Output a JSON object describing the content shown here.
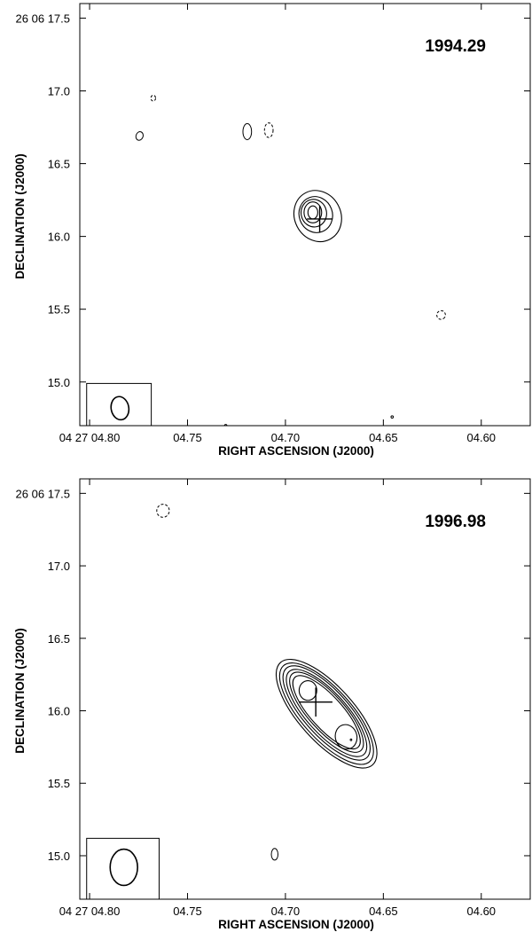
{
  "chart_data": [
    {
      "type": "contour",
      "epoch_label": "1994.29",
      "xlabel": "RIGHT ASCENSION (J2000)",
      "ylabel": "DECLINATION (J2000)",
      "xlim": [
        0.805,
        0.575
      ],
      "ylim": [
        14.7,
        17.6
      ],
      "x_ticks": [
        {
          "value": 0.8,
          "label": "04 27 04.80"
        },
        {
          "value": 0.75,
          "label": "04.75"
        },
        {
          "value": 0.7,
          "label": "04.70"
        },
        {
          "value": 0.65,
          "label": "04.65"
        },
        {
          "value": 0.6,
          "label": "04.60"
        }
      ],
      "y_ticks": [
        {
          "value": 17.5,
          "label": "26 06 17.5"
        },
        {
          "value": 17.0,
          "label": "17.0"
        },
        {
          "value": 16.5,
          "label": "16.5"
        },
        {
          "value": 16.0,
          "label": "16.0"
        },
        {
          "value": 15.5,
          "label": "15.5"
        },
        {
          "value": 15.0,
          "label": "15.0"
        }
      ],
      "cross": {
        "x": 0.6825,
        "y": 16.12,
        "dx": 0.0065,
        "dy": 0.09
      },
      "beam": {
        "x": 0.7845,
        "y": 14.82,
        "rx": 0.0045,
        "ry": 0.08,
        "angle": -10,
        "box": {
          "x0": 0.8015,
          "x1": 0.7685,
          "y0": 14.67,
          "y1": 14.99
        }
      },
      "source_contours": [
        {
          "x": 0.6835,
          "y": 16.14,
          "rx": 0.0118,
          "ry": 0.18,
          "angle": -28
        },
        {
          "x": 0.6845,
          "y": 16.15,
          "rx": 0.0085,
          "ry": 0.125,
          "angle": -20
        },
        {
          "x": 0.6855,
          "y": 16.16,
          "rx": 0.0065,
          "ry": 0.095,
          "angle": -12
        },
        {
          "x": 0.686,
          "y": 16.165,
          "rx": 0.0045,
          "ry": 0.072,
          "angle": 0
        },
        {
          "x": 0.686,
          "y": 16.165,
          "rx": 0.0025,
          "ry": 0.045,
          "angle": 0
        }
      ],
      "noise_contours": [
        {
          "x": 0.7675,
          "y": 16.95,
          "rx": 0.0012,
          "ry": 0.02,
          "angle": 0,
          "dashed": true
        },
        {
          "x": 0.7745,
          "y": 16.69,
          "rx": 0.0018,
          "ry": 0.03,
          "angle": 20,
          "dashed": false
        },
        {
          "x": 0.7195,
          "y": 16.72,
          "rx": 0.0022,
          "ry": 0.055,
          "angle": 0,
          "dashed": false
        },
        {
          "x": 0.7085,
          "y": 16.73,
          "rx": 0.0022,
          "ry": 0.05,
          "angle": 0,
          "dashed": true
        },
        {
          "x": 0.6205,
          "y": 15.46,
          "rx": 0.0022,
          "ry": 0.03,
          "angle": 30,
          "dashed": true
        },
        {
          "x": 0.7305,
          "y": 14.7,
          "rx": 0.0006,
          "ry": 0.008,
          "angle": 0,
          "dashed": false
        },
        {
          "x": 0.6455,
          "y": 14.76,
          "rx": 0.0006,
          "ry": 0.008,
          "angle": 0,
          "dashed": false
        }
      ]
    },
    {
      "type": "contour",
      "epoch_label": "1996.98",
      "xlabel": "RIGHT ASCENSION (J2000)",
      "ylabel": "DECLINATION (J2000)",
      "xlim": [
        0.805,
        0.575
      ],
      "ylim": [
        14.7,
        17.6
      ],
      "x_ticks": [
        {
          "value": 0.8,
          "label": "04 27 04.80"
        },
        {
          "value": 0.75,
          "label": "04.75"
        },
        {
          "value": 0.7,
          "label": "04.70"
        },
        {
          "value": 0.65,
          "label": "04.65"
        },
        {
          "value": 0.6,
          "label": "04.60"
        }
      ],
      "y_ticks": [
        {
          "value": 17.5,
          "label": "26 06 17.5"
        },
        {
          "value": 17.0,
          "label": "17.0"
        },
        {
          "value": 16.5,
          "label": "16.5"
        },
        {
          "value": 16.0,
          "label": "16.0"
        },
        {
          "value": 15.5,
          "label": "15.5"
        },
        {
          "value": 15.0,
          "label": "15.0"
        }
      ],
      "cross": {
        "x": 0.6845,
        "y": 16.06,
        "dx": 0.0085,
        "dy": 0.1
      },
      "beam": {
        "x": 0.7825,
        "y": 14.92,
        "rx": 0.007,
        "ry": 0.125,
        "angle": 0,
        "box": {
          "x0": 0.8015,
          "x1": 0.7645,
          "y0": 14.68,
          "y1": 15.12
        }
      },
      "source_contours": [
        {
          "x": 0.679,
          "y": 15.98,
          "rx": 0.014,
          "ry": 0.475,
          "angle": -42
        },
        {
          "x": 0.679,
          "y": 15.98,
          "rx": 0.0127,
          "ry": 0.445,
          "angle": -42
        },
        {
          "x": 0.679,
          "y": 15.985,
          "rx": 0.0115,
          "ry": 0.415,
          "angle": -42
        },
        {
          "x": 0.679,
          "y": 15.985,
          "rx": 0.0103,
          "ry": 0.385,
          "angle": -42
        },
        {
          "x": 0.679,
          "y": 15.99,
          "rx": 0.0092,
          "ry": 0.355,
          "angle": -42
        },
        {
          "x": 0.679,
          "y": 15.99,
          "rx": 0.0082,
          "ry": 0.325,
          "angle": -42
        },
        {
          "x": 0.6885,
          "y": 16.14,
          "rx": 0.0045,
          "ry": 0.068,
          "angle": 0
        },
        {
          "x": 0.669,
          "y": 15.82,
          "rx": 0.0055,
          "ry": 0.085,
          "angle": -15
        }
      ],
      "noise_contours": [
        {
          "x": 0.7625,
          "y": 17.38,
          "rx": 0.0032,
          "ry": 0.045,
          "angle": 10,
          "dashed": true
        },
        {
          "x": 0.7055,
          "y": 15.01,
          "rx": 0.0017,
          "ry": 0.04,
          "angle": 0,
          "dashed": false
        },
        {
          "x": 0.6665,
          "y": 15.8,
          "rx": 0.0004,
          "ry": 0.006,
          "angle": 0,
          "dashed": false
        }
      ]
    }
  ]
}
